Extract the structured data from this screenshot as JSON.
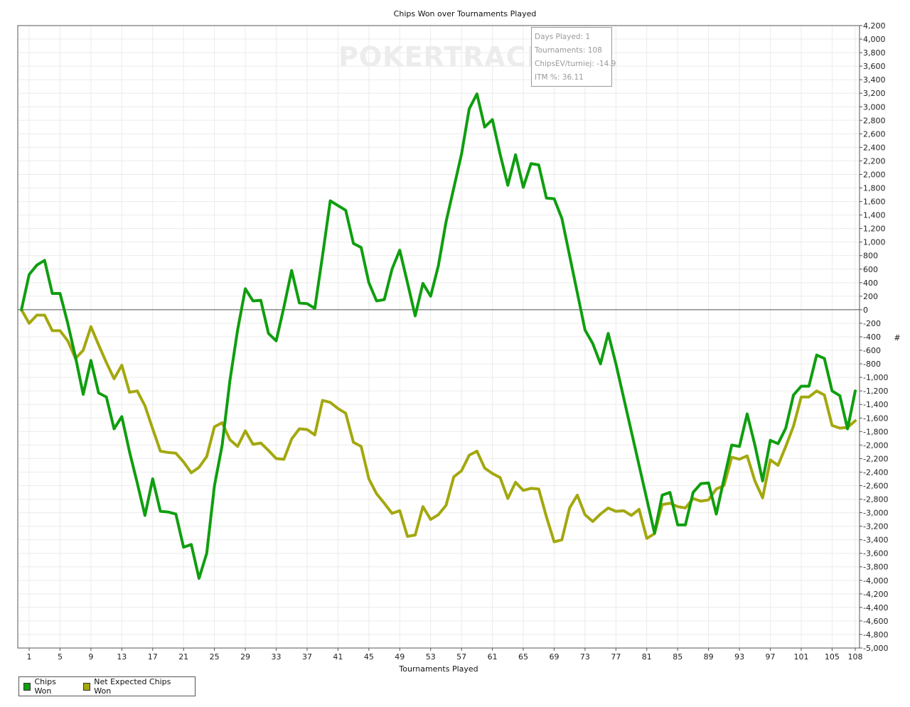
{
  "chart_data": {
    "type": "line",
    "title": "Chips Won over Tournaments Played",
    "xlabel": "Tournaments Played",
    "ylabel": "#",
    "xlim": [
      1,
      108
    ],
    "ylim": [
      -5000,
      4200
    ],
    "x_ticks": [
      1,
      5,
      9,
      13,
      17,
      21,
      25,
      29,
      33,
      37,
      41,
      45,
      49,
      53,
      57,
      61,
      65,
      69,
      73,
      77,
      81,
      85,
      89,
      93,
      97,
      101,
      105,
      108
    ],
    "y_ticks": [
      4200,
      4000,
      3800,
      3600,
      3400,
      3200,
      3000,
      2800,
      2600,
      2400,
      2200,
      2000,
      1800,
      1600,
      1400,
      1200,
      1000,
      800,
      600,
      400,
      200,
      0,
      -200,
      -400,
      -600,
      -800,
      -1000,
      -1200,
      -1400,
      -1600,
      -1800,
      -2000,
      -2200,
      -2400,
      -2600,
      -2800,
      -3000,
      -3200,
      -3400,
      -3600,
      -3800,
      -4000,
      -4200,
      -4400,
      -4600,
      -4800,
      -5000
    ],
    "grid": true,
    "legend_position": "bottom-left",
    "series": [
      {
        "name": "Chips Won",
        "color": "#0f9e0f",
        "values": [
          {
            "x": 0,
            "y": 0
          },
          {
            "x": 1,
            "y": 520
          },
          {
            "x": 2,
            "y": 660
          },
          {
            "x": 3,
            "y": 730
          },
          {
            "x": 4,
            "y": 240
          },
          {
            "x": 5,
            "y": 240
          },
          {
            "x": 6,
            "y": -200
          },
          {
            "x": 7,
            "y": -700
          },
          {
            "x": 8,
            "y": -1250
          },
          {
            "x": 9,
            "y": -750
          },
          {
            "x": 10,
            "y": -1230
          },
          {
            "x": 11,
            "y": -1290
          },
          {
            "x": 12,
            "y": -1760
          },
          {
            "x": 13,
            "y": -1580
          },
          {
            "x": 14,
            "y": -2100
          },
          {
            "x": 15,
            "y": -2560
          },
          {
            "x": 16,
            "y": -3040
          },
          {
            "x": 17,
            "y": -2500
          },
          {
            "x": 18,
            "y": -2980
          },
          {
            "x": 19,
            "y": -2990
          },
          {
            "x": 20,
            "y": -3020
          },
          {
            "x": 21,
            "y": -3510
          },
          {
            "x": 22,
            "y": -3470
          },
          {
            "x": 23,
            "y": -3970
          },
          {
            "x": 24,
            "y": -3600
          },
          {
            "x": 25,
            "y": -2600
          },
          {
            "x": 26,
            "y": -2000
          },
          {
            "x": 27,
            "y": -1050
          },
          {
            "x": 28,
            "y": -300
          },
          {
            "x": 29,
            "y": 310
          },
          {
            "x": 30,
            "y": 130
          },
          {
            "x": 31,
            "y": 140
          },
          {
            "x": 32,
            "y": -350
          },
          {
            "x": 33,
            "y": -460
          },
          {
            "x": 34,
            "y": 40
          },
          {
            "x": 35,
            "y": 580
          },
          {
            "x": 36,
            "y": 100
          },
          {
            "x": 37,
            "y": 90
          },
          {
            "x": 38,
            "y": 20
          },
          {
            "x": 39,
            "y": 800
          },
          {
            "x": 40,
            "y": 1610
          },
          {
            "x": 41,
            "y": 1540
          },
          {
            "x": 42,
            "y": 1470
          },
          {
            "x": 43,
            "y": 980
          },
          {
            "x": 44,
            "y": 920
          },
          {
            "x": 45,
            "y": 400
          },
          {
            "x": 46,
            "y": 130
          },
          {
            "x": 47,
            "y": 150
          },
          {
            "x": 48,
            "y": 600
          },
          {
            "x": 49,
            "y": 880
          },
          {
            "x": 50,
            "y": 400
          },
          {
            "x": 51,
            "y": -90
          },
          {
            "x": 52,
            "y": 390
          },
          {
            "x": 53,
            "y": 200
          },
          {
            "x": 54,
            "y": 650
          },
          {
            "x": 55,
            "y": 1300
          },
          {
            "x": 56,
            "y": 1800
          },
          {
            "x": 57,
            "y": 2300
          },
          {
            "x": 58,
            "y": 2970
          },
          {
            "x": 59,
            "y": 3190
          },
          {
            "x": 60,
            "y": 2700
          },
          {
            "x": 61,
            "y": 2810
          },
          {
            "x": 62,
            "y": 2300
          },
          {
            "x": 63,
            "y": 1840
          },
          {
            "x": 64,
            "y": 2290
          },
          {
            "x": 65,
            "y": 1810
          },
          {
            "x": 66,
            "y": 2160
          },
          {
            "x": 67,
            "y": 2140
          },
          {
            "x": 68,
            "y": 1650
          },
          {
            "x": 69,
            "y": 1640
          },
          {
            "x": 70,
            "y": 1350
          },
          {
            "x": 71,
            "y": 800
          },
          {
            "x": 72,
            "y": 250
          },
          {
            "x": 73,
            "y": -300
          },
          {
            "x": 74,
            "y": -500
          },
          {
            "x": 75,
            "y": -800
          },
          {
            "x": 76,
            "y": -350
          },
          {
            "x": 77,
            "y": -800
          },
          {
            "x": 78,
            "y": -1300
          },
          {
            "x": 79,
            "y": -1800
          },
          {
            "x": 80,
            "y": -2300
          },
          {
            "x": 81,
            "y": -2800
          },
          {
            "x": 82,
            "y": -3300
          },
          {
            "x": 83,
            "y": -2740
          },
          {
            "x": 84,
            "y": -2700
          },
          {
            "x": 85,
            "y": -3180
          },
          {
            "x": 86,
            "y": -3180
          },
          {
            "x": 87,
            "y": -2700
          },
          {
            "x": 88,
            "y": -2570
          },
          {
            "x": 89,
            "y": -2560
          },
          {
            "x": 90,
            "y": -3020
          },
          {
            "x": 91,
            "y": -2500
          },
          {
            "x": 92,
            "y": -2000
          },
          {
            "x": 93,
            "y": -2020
          },
          {
            "x": 94,
            "y": -1540
          },
          {
            "x": 95,
            "y": -2000
          },
          {
            "x": 96,
            "y": -2530
          },
          {
            "x": 97,
            "y": -1930
          },
          {
            "x": 98,
            "y": -1980
          },
          {
            "x": 99,
            "y": -1750
          },
          {
            "x": 100,
            "y": -1260
          },
          {
            "x": 101,
            "y": -1130
          },
          {
            "x": 102,
            "y": -1130
          },
          {
            "x": 103,
            "y": -670
          },
          {
            "x": 104,
            "y": -720
          },
          {
            "x": 105,
            "y": -1200
          },
          {
            "x": 106,
            "y": -1270
          },
          {
            "x": 107,
            "y": -1760
          },
          {
            "x": 108,
            "y": -1200
          }
        ]
      },
      {
        "name": "Net Expected Chips Won",
        "color": "#a3a80f",
        "values": [
          {
            "x": 0,
            "y": 0
          },
          {
            "x": 1,
            "y": -200
          },
          {
            "x": 2,
            "y": -80
          },
          {
            "x": 3,
            "y": -80
          },
          {
            "x": 4,
            "y": -310
          },
          {
            "x": 5,
            "y": -310
          },
          {
            "x": 6,
            "y": -460
          },
          {
            "x": 7,
            "y": -720
          },
          {
            "x": 8,
            "y": -600
          },
          {
            "x": 9,
            "y": -250
          },
          {
            "x": 10,
            "y": -520
          },
          {
            "x": 11,
            "y": -780
          },
          {
            "x": 12,
            "y": -1020
          },
          {
            "x": 13,
            "y": -820
          },
          {
            "x": 14,
            "y": -1220
          },
          {
            "x": 15,
            "y": -1200
          },
          {
            "x": 16,
            "y": -1420
          },
          {
            "x": 17,
            "y": -1760
          },
          {
            "x": 18,
            "y": -2090
          },
          {
            "x": 19,
            "y": -2110
          },
          {
            "x": 20,
            "y": -2120
          },
          {
            "x": 21,
            "y": -2250
          },
          {
            "x": 22,
            "y": -2410
          },
          {
            "x": 23,
            "y": -2330
          },
          {
            "x": 24,
            "y": -2170
          },
          {
            "x": 25,
            "y": -1730
          },
          {
            "x": 26,
            "y": -1670
          },
          {
            "x": 27,
            "y": -1920
          },
          {
            "x": 28,
            "y": -2020
          },
          {
            "x": 29,
            "y": -1790
          },
          {
            "x": 30,
            "y": -1990
          },
          {
            "x": 31,
            "y": -1970
          },
          {
            "x": 32,
            "y": -2080
          },
          {
            "x": 33,
            "y": -2200
          },
          {
            "x": 34,
            "y": -2210
          },
          {
            "x": 35,
            "y": -1910
          },
          {
            "x": 36,
            "y": -1760
          },
          {
            "x": 37,
            "y": -1770
          },
          {
            "x": 38,
            "y": -1850
          },
          {
            "x": 39,
            "y": -1340
          },
          {
            "x": 40,
            "y": -1370
          },
          {
            "x": 41,
            "y": -1460
          },
          {
            "x": 42,
            "y": -1530
          },
          {
            "x": 43,
            "y": -1960
          },
          {
            "x": 44,
            "y": -2020
          },
          {
            "x": 45,
            "y": -2500
          },
          {
            "x": 46,
            "y": -2720
          },
          {
            "x": 47,
            "y": -2860
          },
          {
            "x": 48,
            "y": -3010
          },
          {
            "x": 49,
            "y": -2970
          },
          {
            "x": 50,
            "y": -3350
          },
          {
            "x": 51,
            "y": -3330
          },
          {
            "x": 52,
            "y": -2910
          },
          {
            "x": 53,
            "y": -3100
          },
          {
            "x": 54,
            "y": -3030
          },
          {
            "x": 55,
            "y": -2890
          },
          {
            "x": 56,
            "y": -2470
          },
          {
            "x": 57,
            "y": -2380
          },
          {
            "x": 58,
            "y": -2150
          },
          {
            "x": 59,
            "y": -2090
          },
          {
            "x": 60,
            "y": -2340
          },
          {
            "x": 61,
            "y": -2420
          },
          {
            "x": 62,
            "y": -2480
          },
          {
            "x": 63,
            "y": -2790
          },
          {
            "x": 64,
            "y": -2550
          },
          {
            "x": 65,
            "y": -2670
          },
          {
            "x": 66,
            "y": -2640
          },
          {
            "x": 67,
            "y": -2650
          },
          {
            "x": 68,
            "y": -3060
          },
          {
            "x": 69,
            "y": -3430
          },
          {
            "x": 70,
            "y": -3400
          },
          {
            "x": 71,
            "y": -2930
          },
          {
            "x": 72,
            "y": -2740
          },
          {
            "x": 73,
            "y": -3030
          },
          {
            "x": 74,
            "y": -3130
          },
          {
            "x": 75,
            "y": -3020
          },
          {
            "x": 76,
            "y": -2930
          },
          {
            "x": 77,
            "y": -2980
          },
          {
            "x": 78,
            "y": -2970
          },
          {
            "x": 79,
            "y": -3040
          },
          {
            "x": 80,
            "y": -2950
          },
          {
            "x": 81,
            "y": -3380
          },
          {
            "x": 82,
            "y": -3310
          },
          {
            "x": 83,
            "y": -2880
          },
          {
            "x": 84,
            "y": -2860
          },
          {
            "x": 85,
            "y": -2910
          },
          {
            "x": 86,
            "y": -2930
          },
          {
            "x": 87,
            "y": -2790
          },
          {
            "x": 88,
            "y": -2830
          },
          {
            "x": 89,
            "y": -2810
          },
          {
            "x": 90,
            "y": -2650
          },
          {
            "x": 91,
            "y": -2600
          },
          {
            "x": 92,
            "y": -2180
          },
          {
            "x": 93,
            "y": -2210
          },
          {
            "x": 94,
            "y": -2160
          },
          {
            "x": 95,
            "y": -2530
          },
          {
            "x": 96,
            "y": -2780
          },
          {
            "x": 97,
            "y": -2220
          },
          {
            "x": 98,
            "y": -2300
          },
          {
            "x": 99,
            "y": -2020
          },
          {
            "x": 100,
            "y": -1720
          },
          {
            "x": 101,
            "y": -1290
          },
          {
            "x": 102,
            "y": -1290
          },
          {
            "x": 103,
            "y": -1200
          },
          {
            "x": 104,
            "y": -1260
          },
          {
            "x": 105,
            "y": -1710
          },
          {
            "x": 106,
            "y": -1750
          },
          {
            "x": 107,
            "y": -1740
          },
          {
            "x": 108,
            "y": -1640
          }
        ]
      }
    ]
  },
  "tooltip": {
    "days_played": "Days Played: 1",
    "tournaments": "Tournaments: 108",
    "chipsev": "ChipsEV/turniej: -14.9",
    "itm": "ITM %: 36.11"
  },
  "watermark": "POKERTRACKER",
  "colors": {
    "grid": "#ebebeb",
    "axis": "#555555",
    "zero_line": "#555555"
  }
}
